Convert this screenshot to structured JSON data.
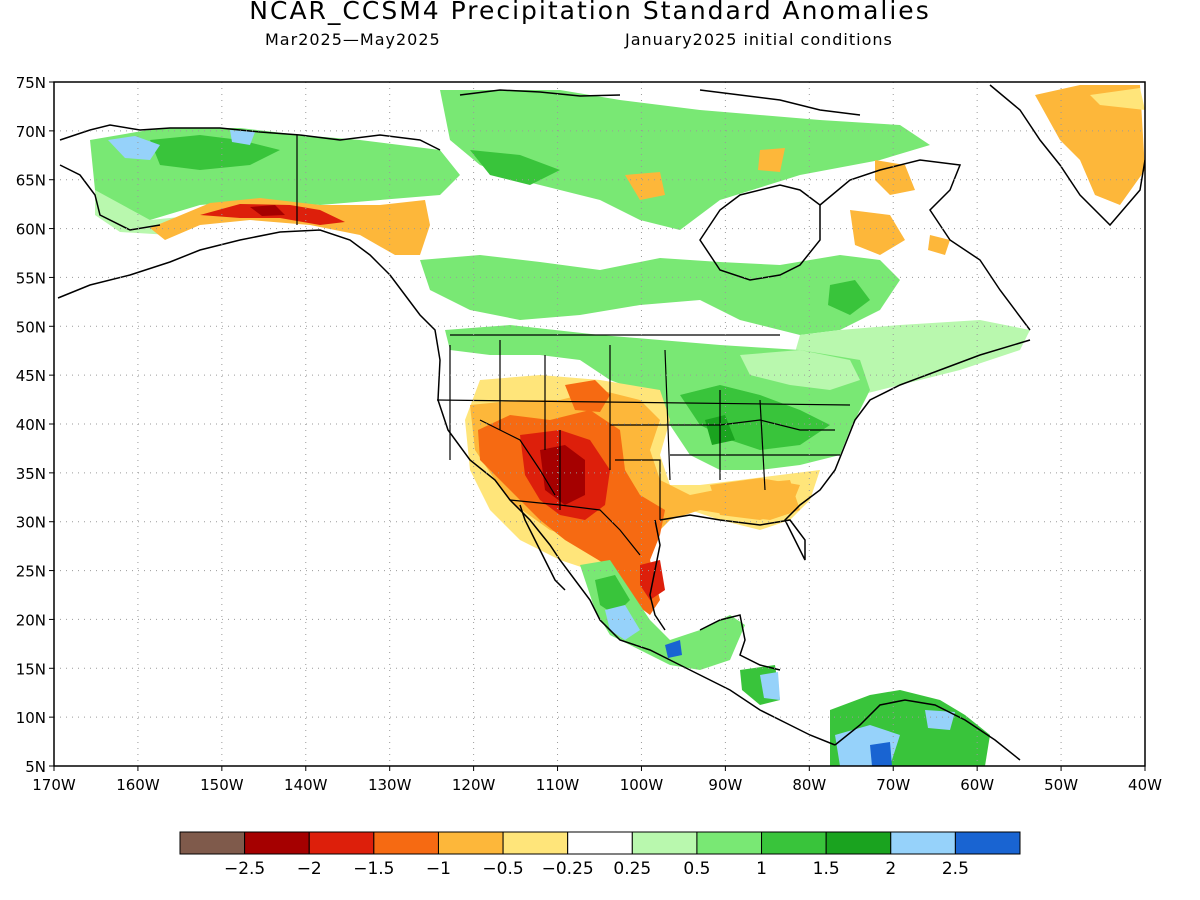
{
  "title": "NCAR_CCSM4 Precipitation Standard Anomalies",
  "period": "Mar2025—May2025",
  "init": "January2025 initial conditions",
  "map": {
    "lon_range": [
      -170,
      -40
    ],
    "lat_range": [
      5,
      75
    ],
    "xticks": [
      "170W",
      "160W",
      "150W",
      "140W",
      "130W",
      "120W",
      "110W",
      "100W",
      "90W",
      "80W",
      "70W",
      "60W",
      "50W",
      "40W"
    ],
    "yticks": [
      "75N",
      "70N",
      "65N",
      "60N",
      "55N",
      "50N",
      "45N",
      "40N",
      "35N",
      "30N",
      "25N",
      "20N",
      "15N",
      "10N",
      "5N"
    ],
    "grid": "dotted"
  },
  "colorbar": {
    "colors": [
      "#7f5a4b",
      "#a50000",
      "#dd1f0b",
      "#f66a12",
      "#fdb73a",
      "#ffe57a",
      "#ffffff",
      "#b9f8ae",
      "#79e874",
      "#39c43b",
      "#1aa31f",
      "#96d2fa",
      "#1964d2"
    ],
    "labels": [
      "−2.5",
      "−2",
      "−1.5",
      "−1",
      "−0.5",
      "−0.25",
      "0.25",
      "0.5",
      "1",
      "1.5",
      "2",
      "2.5"
    ]
  },
  "palette": {
    "coast": "#000000",
    "green_light": "#b9f8ae",
    "green": "#79e874",
    "green_mid": "#39c43b",
    "green_dark": "#1aa31f",
    "blue_light": "#96d2fa",
    "blue": "#1964d2",
    "yellow": "#ffe57a",
    "orange_light": "#fdb73a",
    "orange": "#f66a12",
    "red": "#dd1f0b",
    "dark_red": "#a50000"
  }
}
